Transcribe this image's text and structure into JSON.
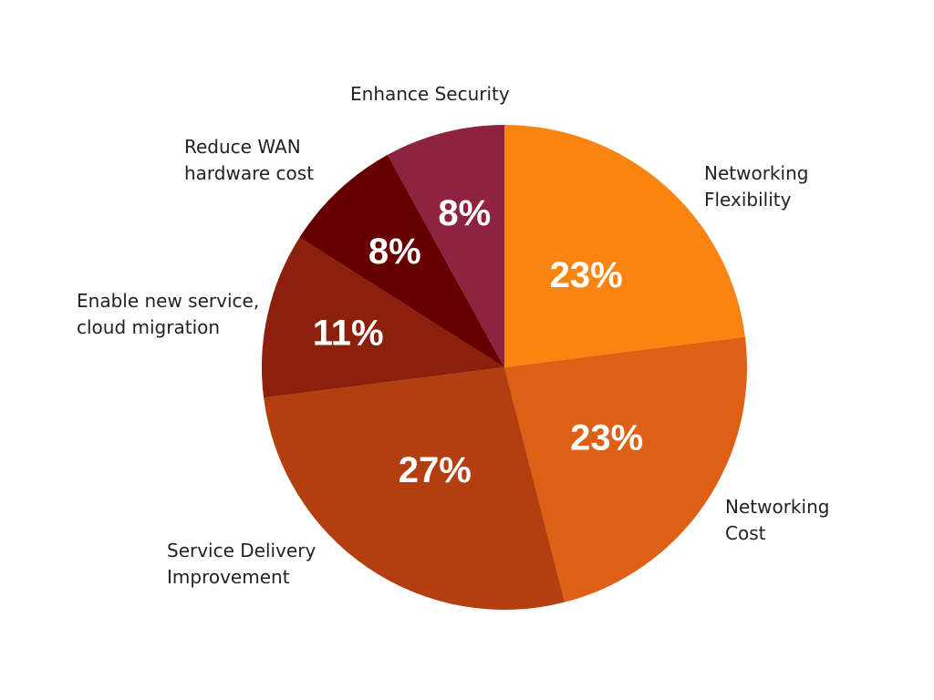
{
  "chart_data": {
    "type": "pie",
    "slices": [
      {
        "label_lines": [
          "Networking",
          "Flexibility"
        ],
        "value": 23,
        "value_label": "23%",
        "color": "#fb8411"
      },
      {
        "label_lines": [
          "Networking",
          "Cost"
        ],
        "value": 23,
        "value_label": "23%",
        "color": "#de6014"
      },
      {
        "label_lines": [
          "Service Delivery",
          "Improvement"
        ],
        "value": 27,
        "value_label": "27%",
        "color": "#b33e10"
      },
      {
        "label_lines": [
          "Enable new service,",
          "cloud migration"
        ],
        "value": 11,
        "value_label": "11%",
        "color": "#8c200c"
      },
      {
        "label_lines": [
          "Reduce WAN",
          "hardware cost"
        ],
        "value": 8,
        "value_label": "8%",
        "color": "#660000"
      },
      {
        "label_lines": [
          "Enhance Security"
        ],
        "value": 8,
        "value_label": "8%",
        "color": "#8e2340"
      }
    ],
    "start_angle": "12 o'clock",
    "direction": "clockwise"
  }
}
